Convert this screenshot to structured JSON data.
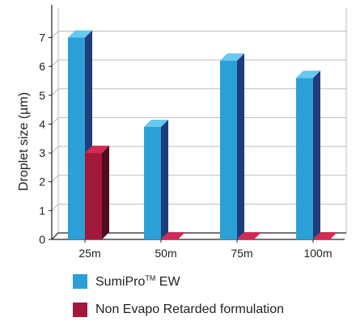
{
  "chart_data": {
    "type": "bar",
    "categories": [
      "25m",
      "50m",
      "75m",
      "100m"
    ],
    "series": [
      {
        "name": "SumiPro™ EW",
        "values": [
          7.0,
          3.9,
          6.2,
          5.6
        ]
      },
      {
        "name": "Non Evapo Retarded formulation",
        "values": [
          3.0,
          0,
          0,
          0
        ]
      }
    ],
    "title": "",
    "xlabel": "",
    "ylabel": "Droplet size (µm)",
    "ylim": [
      0,
      7.8
    ],
    "yticks": [
      "0",
      "1",
      "2",
      "3",
      "4",
      "5",
      "6",
      "7"
    ],
    "grid": true,
    "legend_position": "bottom"
  },
  "legend": {
    "items": [
      {
        "label": "SumiPro",
        "sup": "TM",
        "suffix": " EW"
      },
      {
        "label": "Non Evapo Retarded formulation",
        "sup": "",
        "suffix": ""
      }
    ]
  },
  "colors": {
    "series1_front": "#2aa0d6",
    "series1_side": "#1f3d7a",
    "series1_top": "#67c8f0",
    "series2_front": "#a3173a",
    "series2_side": "#4f0d1c",
    "series2_top": "#d42a55",
    "grid": "#bdbdbd",
    "axis": "#222222"
  }
}
